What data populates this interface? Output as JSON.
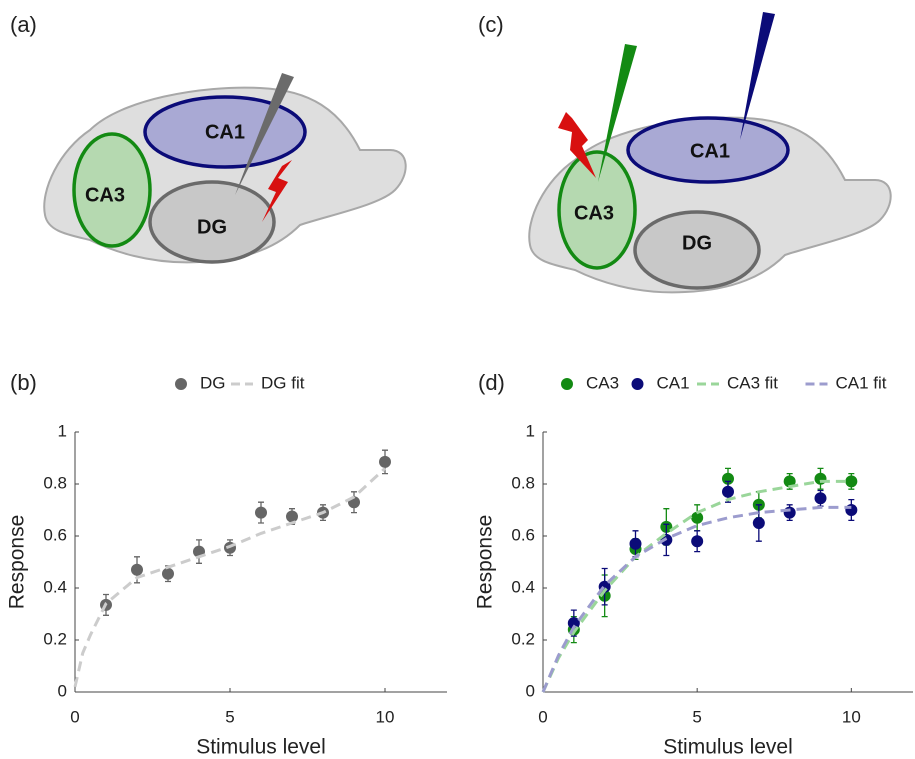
{
  "diagrams": [
    {
      "panel": "(a)",
      "regions": [
        "CA1",
        "CA3",
        "DG"
      ]
    },
    {
      "panel": "(c)",
      "regions": [
        "CA1",
        "CA3",
        "DG"
      ]
    }
  ],
  "chart_data": [
    {
      "type": "scatter",
      "panel": "(b)",
      "xlabel": "Stimulus level",
      "ylabel": "Response",
      "xlim": [
        0,
        12
      ],
      "xticks": [
        0,
        5,
        10
      ],
      "ylim": [
        0,
        1
      ],
      "yticks": [
        0,
        0.2,
        0.4,
        0.6,
        0.8,
        1
      ],
      "series": [
        {
          "name": "DG",
          "color": "#666666",
          "mode": "markers",
          "x": [
            1,
            2,
            3,
            4,
            5,
            6,
            7,
            8,
            9,
            10
          ],
          "values": [
            0.335,
            0.47,
            0.455,
            0.54,
            0.555,
            0.69,
            0.675,
            0.69,
            0.73,
            0.885
          ],
          "errors": [
            0.04,
            0.05,
            0.03,
            0.045,
            0.03,
            0.04,
            0.03,
            0.03,
            0.04,
            0.045
          ]
        },
        {
          "name": "DG fit",
          "color": "#cccccc",
          "mode": "dashed-line",
          "x": [
            0,
            0.25,
            0.5,
            1,
            2,
            3,
            4,
            5,
            6,
            7,
            8,
            9,
            10
          ],
          "values": [
            0.02,
            0.15,
            0.22,
            0.34,
            0.44,
            0.48,
            0.52,
            0.56,
            0.61,
            0.65,
            0.69,
            0.75,
            0.86
          ]
        }
      ]
    },
    {
      "type": "scatter",
      "panel": "(d)",
      "xlabel": "Stimulus level",
      "ylabel": "Response",
      "xlim": [
        0,
        12
      ],
      "xticks": [
        0,
        5,
        10
      ],
      "ylim": [
        0,
        1
      ],
      "yticks": [
        0,
        0.2,
        0.4,
        0.6,
        0.8,
        1
      ],
      "series": [
        {
          "name": "CA3",
          "color": "#138a13",
          "mode": "markers",
          "x": [
            1,
            2,
            3,
            4,
            5,
            6,
            7,
            8,
            9,
            10
          ],
          "values": [
            0.24,
            0.37,
            0.55,
            0.635,
            0.67,
            0.82,
            0.72,
            0.81,
            0.82,
            0.81
          ],
          "errors": [
            0.05,
            0.08,
            0.04,
            0.07,
            0.05,
            0.04,
            0.05,
            0.03,
            0.04,
            0.03
          ]
        },
        {
          "name": "CA1",
          "color": "#0b0b78",
          "mode": "markers",
          "x": [
            1,
            2,
            3,
            4,
            5,
            6,
            7,
            8,
            9,
            10
          ],
          "values": [
            0.265,
            0.405,
            0.57,
            0.585,
            0.58,
            0.77,
            0.65,
            0.69,
            0.745,
            0.7
          ],
          "errors": [
            0.05,
            0.07,
            0.05,
            0.06,
            0.04,
            0.04,
            0.07,
            0.03,
            0.03,
            0.04
          ]
        },
        {
          "name": "CA3 fit",
          "color": "#9ad69a",
          "mode": "dashed-line",
          "x": [
            0,
            0.5,
            1,
            2,
            3,
            4,
            5,
            6,
            7,
            8,
            9,
            10
          ],
          "values": [
            0,
            0.13,
            0.23,
            0.39,
            0.52,
            0.61,
            0.69,
            0.74,
            0.77,
            0.79,
            0.81,
            0.81
          ]
        },
        {
          "name": "CA1 fit",
          "color": "#9c9cce",
          "mode": "dashed-line",
          "x": [
            0,
            0.5,
            1,
            2,
            3,
            4,
            5,
            6,
            7,
            8,
            9,
            10
          ],
          "values": [
            0,
            0.14,
            0.25,
            0.41,
            0.52,
            0.59,
            0.64,
            0.67,
            0.69,
            0.7,
            0.71,
            0.71
          ]
        }
      ]
    }
  ]
}
